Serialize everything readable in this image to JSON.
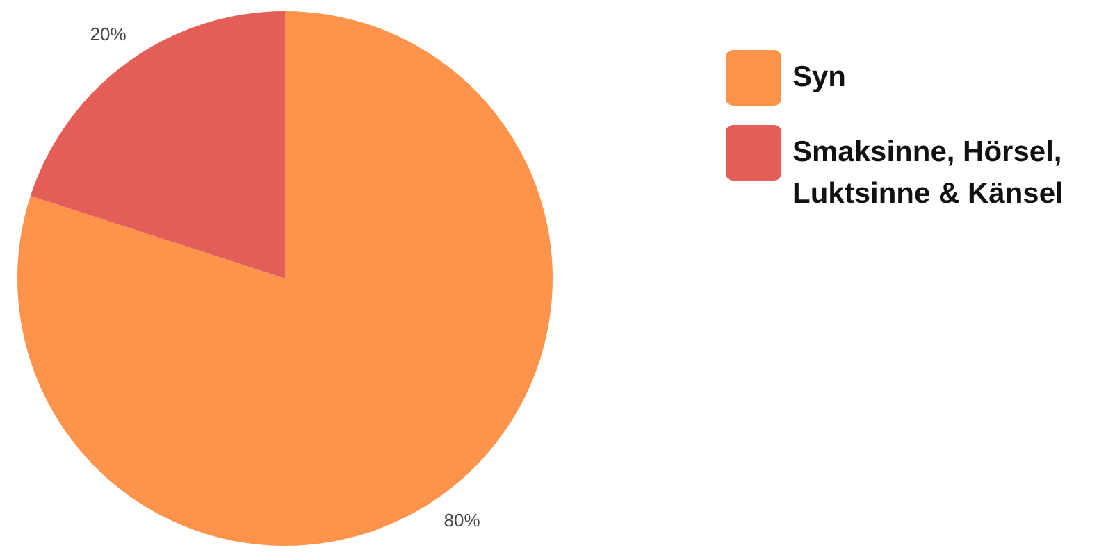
{
  "chart_data": {
    "type": "pie",
    "categories": [
      "Syn",
      "Smaksinne, Hörsel, Luktsinne & Känsel"
    ],
    "values": [
      80,
      20
    ],
    "colors": [
      "#fe944c",
      "#e25e56"
    ],
    "value_labels": [
      "80%",
      "20%"
    ],
    "legend": "right"
  }
}
